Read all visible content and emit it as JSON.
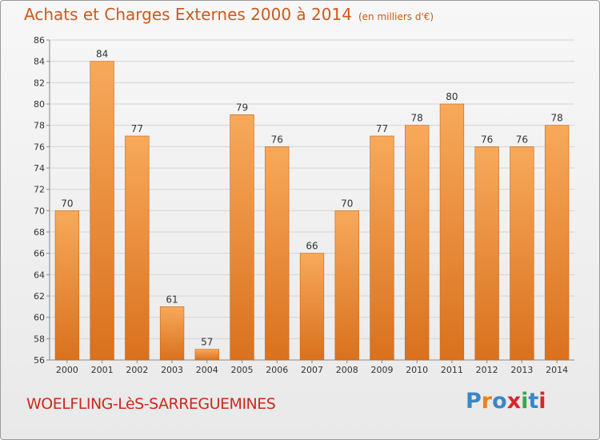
{
  "header": {
    "title": "Achats et Charges Externes 2000 à 2014",
    "subtitle": "(en milliers d'€)"
  },
  "footer": {
    "commune": "WOELFLING-LèS-SARREGUEMINES",
    "logo_letters": [
      "P",
      "r",
      "o",
      "x",
      "i",
      "t",
      "i"
    ],
    "logo_colors": [
      "#3a86c8",
      "#e8831e",
      "#3a86c8",
      "#d9262b",
      "#3aa84a",
      "#3a86c8",
      "#d9262b"
    ]
  },
  "chart_data": {
    "type": "bar",
    "title": "Achats et Charges Externes 2000 à 2014",
    "subtitle": "(en milliers d'€)",
    "xlabel": "",
    "ylabel": "",
    "categories": [
      "2000",
      "2001",
      "2002",
      "2003",
      "2004",
      "2005",
      "2006",
      "2007",
      "2008",
      "2009",
      "2010",
      "2011",
      "2012",
      "2013",
      "2014"
    ],
    "values": [
      70,
      84,
      77,
      61,
      57,
      79,
      76,
      66,
      70,
      77,
      78,
      80,
      76,
      76,
      78
    ],
    "ylim": [
      56,
      86
    ],
    "yticks": [
      56,
      58,
      60,
      62,
      64,
      66,
      68,
      70,
      72,
      74,
      76,
      78,
      80,
      82,
      84,
      86
    ],
    "grid": true,
    "colors": {
      "bar_top": "#f7a95a",
      "bar_bottom": "#d9711e",
      "grid": "#d4d4d4",
      "axis": "#888888"
    }
  }
}
